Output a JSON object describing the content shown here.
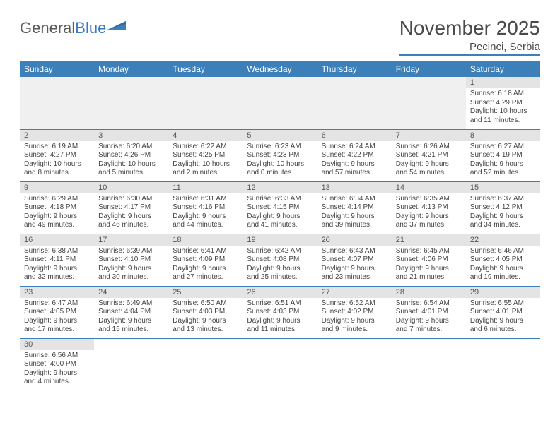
{
  "logo": {
    "text1": "General",
    "text2": "Blue"
  },
  "title": "November 2025",
  "location": "Pecinci, Serbia",
  "colors": {
    "header_bg": "#3d7fb8",
    "header_text": "#ffffff",
    "daynum_bg": "#e4e4e4",
    "row_border": "#3d7fb8",
    "logo_gray": "#5a5a5a",
    "logo_blue": "#3b7ab8",
    "body_text": "#444444"
  },
  "weekdays": [
    "Sunday",
    "Monday",
    "Tuesday",
    "Wednesday",
    "Thursday",
    "Friday",
    "Saturday"
  ],
  "leading_blanks": 6,
  "days": [
    {
      "n": "1",
      "sunrise": "6:18 AM",
      "sunset": "4:29 PM",
      "daylight": "10 hours and 11 minutes."
    },
    {
      "n": "2",
      "sunrise": "6:19 AM",
      "sunset": "4:27 PM",
      "daylight": "10 hours and 8 minutes."
    },
    {
      "n": "3",
      "sunrise": "6:20 AM",
      "sunset": "4:26 PM",
      "daylight": "10 hours and 5 minutes."
    },
    {
      "n": "4",
      "sunrise": "6:22 AM",
      "sunset": "4:25 PM",
      "daylight": "10 hours and 2 minutes."
    },
    {
      "n": "5",
      "sunrise": "6:23 AM",
      "sunset": "4:23 PM",
      "daylight": "10 hours and 0 minutes."
    },
    {
      "n": "6",
      "sunrise": "6:24 AM",
      "sunset": "4:22 PM",
      "daylight": "9 hours and 57 minutes."
    },
    {
      "n": "7",
      "sunrise": "6:26 AM",
      "sunset": "4:21 PM",
      "daylight": "9 hours and 54 minutes."
    },
    {
      "n": "8",
      "sunrise": "6:27 AM",
      "sunset": "4:19 PM",
      "daylight": "9 hours and 52 minutes."
    },
    {
      "n": "9",
      "sunrise": "6:29 AM",
      "sunset": "4:18 PM",
      "daylight": "9 hours and 49 minutes."
    },
    {
      "n": "10",
      "sunrise": "6:30 AM",
      "sunset": "4:17 PM",
      "daylight": "9 hours and 46 minutes."
    },
    {
      "n": "11",
      "sunrise": "6:31 AM",
      "sunset": "4:16 PM",
      "daylight": "9 hours and 44 minutes."
    },
    {
      "n": "12",
      "sunrise": "6:33 AM",
      "sunset": "4:15 PM",
      "daylight": "9 hours and 41 minutes."
    },
    {
      "n": "13",
      "sunrise": "6:34 AM",
      "sunset": "4:14 PM",
      "daylight": "9 hours and 39 minutes."
    },
    {
      "n": "14",
      "sunrise": "6:35 AM",
      "sunset": "4:13 PM",
      "daylight": "9 hours and 37 minutes."
    },
    {
      "n": "15",
      "sunrise": "6:37 AM",
      "sunset": "4:12 PM",
      "daylight": "9 hours and 34 minutes."
    },
    {
      "n": "16",
      "sunrise": "6:38 AM",
      "sunset": "4:11 PM",
      "daylight": "9 hours and 32 minutes."
    },
    {
      "n": "17",
      "sunrise": "6:39 AM",
      "sunset": "4:10 PM",
      "daylight": "9 hours and 30 minutes."
    },
    {
      "n": "18",
      "sunrise": "6:41 AM",
      "sunset": "4:09 PM",
      "daylight": "9 hours and 27 minutes."
    },
    {
      "n": "19",
      "sunrise": "6:42 AM",
      "sunset": "4:08 PM",
      "daylight": "9 hours and 25 minutes."
    },
    {
      "n": "20",
      "sunrise": "6:43 AM",
      "sunset": "4:07 PM",
      "daylight": "9 hours and 23 minutes."
    },
    {
      "n": "21",
      "sunrise": "6:45 AM",
      "sunset": "4:06 PM",
      "daylight": "9 hours and 21 minutes."
    },
    {
      "n": "22",
      "sunrise": "6:46 AM",
      "sunset": "4:05 PM",
      "daylight": "9 hours and 19 minutes."
    },
    {
      "n": "23",
      "sunrise": "6:47 AM",
      "sunset": "4:05 PM",
      "daylight": "9 hours and 17 minutes."
    },
    {
      "n": "24",
      "sunrise": "6:49 AM",
      "sunset": "4:04 PM",
      "daylight": "9 hours and 15 minutes."
    },
    {
      "n": "25",
      "sunrise": "6:50 AM",
      "sunset": "4:03 PM",
      "daylight": "9 hours and 13 minutes."
    },
    {
      "n": "26",
      "sunrise": "6:51 AM",
      "sunset": "4:03 PM",
      "daylight": "9 hours and 11 minutes."
    },
    {
      "n": "27",
      "sunrise": "6:52 AM",
      "sunset": "4:02 PM",
      "daylight": "9 hours and 9 minutes."
    },
    {
      "n": "28",
      "sunrise": "6:54 AM",
      "sunset": "4:01 PM",
      "daylight": "9 hours and 7 minutes."
    },
    {
      "n": "29",
      "sunrise": "6:55 AM",
      "sunset": "4:01 PM",
      "daylight": "9 hours and 6 minutes."
    },
    {
      "n": "30",
      "sunrise": "6:56 AM",
      "sunset": "4:00 PM",
      "daylight": "9 hours and 4 minutes."
    }
  ]
}
